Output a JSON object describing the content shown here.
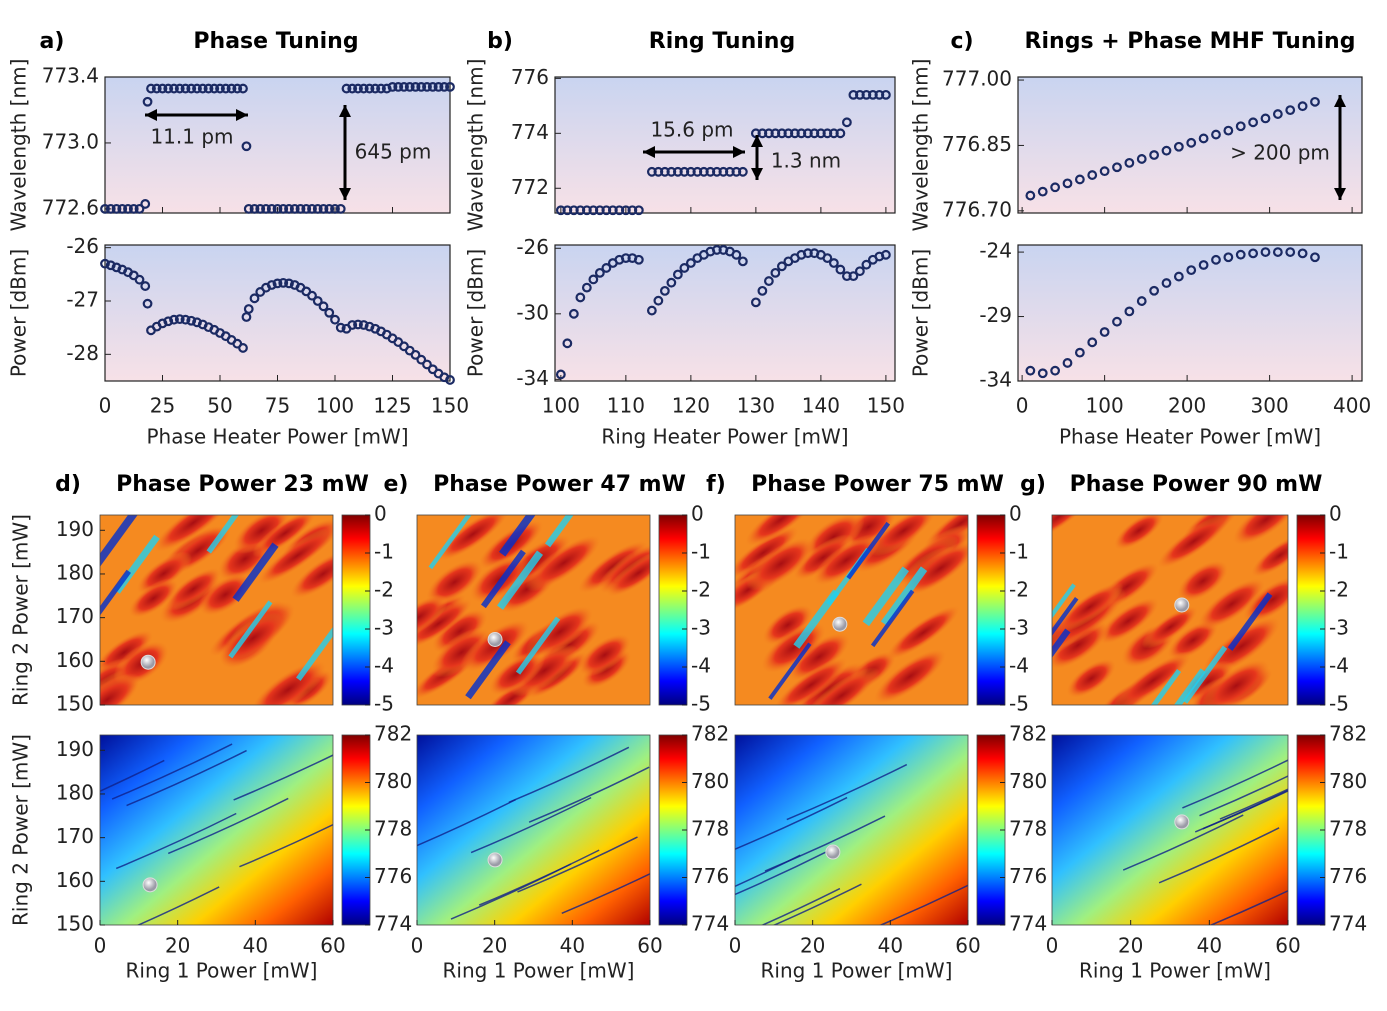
{
  "chart_data": [
    {
      "type": "scatter",
      "label": "a)",
      "title": "Phase Tuning",
      "xlabel": "Phase Heater Power [mW]",
      "xlim": [
        0,
        150
      ],
      "xticks": [
        0,
        25,
        50,
        75,
        100,
        125,
        150
      ],
      "x": [
        0,
        2.5,
        5,
        7.5,
        10,
        12.5,
        15,
        17.5,
        18.5,
        20,
        22.5,
        25,
        27.5,
        30,
        32.5,
        35,
        37.5,
        40,
        42.5,
        45,
        47.5,
        50,
        52.5,
        55,
        57.5,
        60,
        61.5,
        62.5,
        65,
        67.5,
        70,
        72.5,
        75,
        77.5,
        80,
        82.5,
        85,
        87.5,
        90,
        92.5,
        95,
        97.5,
        100,
        102.5,
        105,
        107.5,
        110,
        112.5,
        115,
        117.5,
        120,
        122.5,
        125,
        127.5,
        130,
        132.5,
        135,
        137.5,
        140,
        142.5,
        145,
        147.5,
        150
      ],
      "panels": [
        {
          "ylabel": "Wavelength [nm]",
          "ylim": [
            772.575,
            773.4
          ],
          "yticks": [
            772.6,
            {
              "value": 773,
              "label": "773.0"
            },
            773.4
          ],
          "color": "#1b2a63",
          "annotations": [
            "11.1 pm",
            "645 pm"
          ],
          "values": [
            772.6,
            772.6,
            772.6,
            772.6,
            772.6,
            772.6,
            772.6,
            772.63,
            773.25,
            773.33,
            773.33,
            773.33,
            773.33,
            773.33,
            773.33,
            773.33,
            773.33,
            773.33,
            773.33,
            773.33,
            773.33,
            773.33,
            773.33,
            773.33,
            773.33,
            773.33,
            772.98,
            772.6,
            772.6,
            772.6,
            772.6,
            772.6,
            772.6,
            772.6,
            772.6,
            772.6,
            772.6,
            772.6,
            772.6,
            772.6,
            772.6,
            772.6,
            772.6,
            772.6,
            773.33,
            773.33,
            773.33,
            773.33,
            773.33,
            773.33,
            773.33,
            773.33,
            773.34,
            773.34,
            773.34,
            773.34,
            773.34,
            773.34,
            773.34,
            773.34,
            773.34,
            773.34,
            773.34
          ]
        },
        {
          "ylabel": "Power [dBm]",
          "ylim": [
            -28.5,
            -25.95
          ],
          "yticks": [
            -26,
            -27,
            -28
          ],
          "color": "#1b2a63",
          "values": [
            -26.3,
            -26.33,
            -26.37,
            -26.41,
            -26.46,
            -26.52,
            -26.6,
            -26.72,
            -27.05,
            -27.55,
            -27.48,
            -27.42,
            -27.38,
            -27.35,
            -27.34,
            -27.35,
            -27.37,
            -27.4,
            -27.44,
            -27.49,
            -27.54,
            -27.6,
            -27.66,
            -27.73,
            -27.8,
            -27.88,
            -27.3,
            -27.15,
            -26.95,
            -26.83,
            -26.75,
            -26.7,
            -26.67,
            -26.66,
            -26.67,
            -26.7,
            -26.75,
            -26.82,
            -26.9,
            -27.0,
            -27.1,
            -27.22,
            -27.35,
            -27.5,
            -27.52,
            -27.45,
            -27.44,
            -27.45,
            -27.48,
            -27.52,
            -27.57,
            -27.63,
            -27.7,
            -27.77,
            -27.85,
            -27.93,
            -28.01,
            -28.1,
            -28.19,
            -28.28,
            -28.36,
            -28.43,
            -28.48
          ]
        }
      ]
    },
    {
      "type": "scatter",
      "label": "b)",
      "title": "Ring Tuning",
      "xlabel": "Ring Heater Power [mW]",
      "xlim": [
        99.1,
        151.4
      ],
      "xticks": [
        100,
        110,
        120,
        130,
        140,
        150
      ],
      "x": [
        100,
        101,
        102,
        103,
        104,
        105,
        106,
        107,
        108,
        109,
        110,
        111,
        112,
        114,
        115,
        116,
        117,
        118,
        119,
        120,
        121,
        122,
        123,
        124,
        125,
        126,
        127,
        128,
        130,
        131,
        132,
        133,
        134,
        135,
        136,
        137,
        138,
        139,
        140,
        141,
        142,
        143,
        144,
        145,
        146,
        147,
        148,
        149,
        150
      ],
      "panels": [
        {
          "ylabel": "Wavelength [nm]",
          "ylim": [
            771.1,
            776.05
          ],
          "yticks": [
            772,
            774,
            776
          ],
          "color": "#1b2a63",
          "annotations": [
            "15.6 pm",
            "1.3 nm"
          ],
          "values": [
            771.2,
            771.2,
            771.2,
            771.2,
            771.2,
            771.2,
            771.2,
            771.2,
            771.2,
            771.2,
            771.2,
            771.2,
            771.2,
            772.6,
            772.6,
            772.6,
            772.6,
            772.6,
            772.6,
            772.6,
            772.6,
            772.6,
            772.6,
            772.6,
            772.6,
            772.6,
            772.6,
            772.6,
            774.0,
            774.0,
            774.0,
            774.0,
            774.0,
            774.0,
            774.0,
            774.0,
            774.0,
            774.0,
            774.0,
            774.0,
            774.0,
            774.0,
            774.4,
            775.4,
            775.4,
            775.4,
            775.4,
            775.4,
            775.4
          ]
        },
        {
          "ylabel": "Power [dBm]",
          "ylim": [
            -34.1,
            -25.8
          ],
          "yticks": [
            -26,
            -30,
            -34
          ],
          "color": "#1b2a63",
          "values": [
            -33.7,
            -31.8,
            -30,
            -29,
            -28.4,
            -27.9,
            -27.5,
            -27.2,
            -26.9,
            -26.7,
            -26.6,
            -26.6,
            -26.7,
            -29.8,
            -29.2,
            -28.6,
            -28.1,
            -27.6,
            -27.2,
            -26.9,
            -26.6,
            -26.4,
            -26.2,
            -26.1,
            -26.1,
            -26.2,
            -26.4,
            -26.8,
            -29.3,
            -28.6,
            -28,
            -27.5,
            -27.1,
            -26.8,
            -26.6,
            -26.4,
            -26.3,
            -26.3,
            -26.4,
            -26.6,
            -26.9,
            -27.3,
            -27.7,
            -27.7,
            -27.4,
            -27.0,
            -26.7,
            -26.5,
            -26.4
          ]
        }
      ]
    },
    {
      "type": "scatter",
      "label": "c)",
      "title": "Rings + Phase MHF Tuning",
      "xlabel": "Phase Heater Power [mW]",
      "xlim": [
        -5,
        412
      ],
      "xticks": [
        0,
        100,
        200,
        300,
        400
      ],
      "x": [
        10,
        25,
        40,
        55,
        70,
        85,
        100,
        115,
        130,
        145,
        160,
        175,
        190,
        205,
        220,
        235,
        250,
        265,
        280,
        295,
        310,
        325,
        340,
        355
      ],
      "panels": [
        {
          "ylabel": "Wavelength [nm]",
          "ylim": [
            776.695,
            777.007
          ],
          "yticks": [
            {
              "value": 776.7,
              "label": "776.70"
            },
            776.85,
            {
              "value": 777,
              "label": "777.00"
            }
          ],
          "color": "#1b2a63",
          "annotations": [
            "> 200 pm"
          ],
          "values": [
            776.735,
            776.744,
            776.754,
            776.763,
            776.772,
            776.782,
            776.791,
            776.8,
            776.81,
            776.819,
            776.828,
            776.838,
            776.847,
            776.856,
            776.866,
            776.875,
            776.884,
            776.894,
            776.903,
            776.912,
            776.922,
            776.931,
            776.94,
            776.95
          ]
        },
        {
          "ylabel": "Power [dBm]",
          "ylim": [
            -34,
            -23.45
          ],
          "yticks": [
            -24,
            -29,
            -34
          ],
          "color": "#1b2a63",
          "values": [
            -33.2,
            -33.4,
            -33.2,
            -32.6,
            -31.8,
            -31.0,
            -30.2,
            -29.4,
            -28.6,
            -27.8,
            -27.0,
            -26.4,
            -25.9,
            -25.4,
            -25.0,
            -24.6,
            -24.4,
            -24.2,
            -24.1,
            -24.0,
            -24.0,
            -24.0,
            -24.1,
            -24.4
          ]
        }
      ]
    },
    {
      "type": "heatmap",
      "label": "d)",
      "title": "Phase Power 23 mW",
      "xlabel": "Ring 1 Power [mW]",
      "ylabel": "Ring 2  Power [mW]",
      "xlim": [
        0,
        60
      ],
      "xticks": [
        0,
        20,
        40,
        60
      ],
      "ylim": [
        150,
        193.5
      ],
      "yticks": [
        150,
        160,
        170,
        180,
        190
      ],
      "maps": [
        {
          "clim": [
            -5,
            0
          ],
          "cticks": [
            0,
            -1,
            -2,
            -3,
            -4,
            -5
          ],
          "marker": {
            "x": 12.4,
            "y": 159.8
          }
        },
        {
          "clim": [
            774,
            782
          ],
          "cticks": [
            774,
            776,
            778,
            780,
            782
          ],
          "marker": {
            "x": 12.9,
            "y": 159.2
          }
        }
      ]
    },
    {
      "type": "heatmap",
      "label": "e)",
      "title": "Phase Power 47 mW",
      "xlabel": "Ring 1 Power [mW]",
      "xlim": [
        0,
        60
      ],
      "xticks": [
        0,
        20,
        40,
        60
      ],
      "ylim": [
        150,
        193.5
      ],
      "maps": [
        {
          "clim": [
            -5,
            0
          ],
          "cticks": [
            0,
            -1,
            -2,
            -3,
            -4,
            -5
          ],
          "marker": {
            "x": 20.1,
            "y": 165
          }
        },
        {
          "clim": [
            774,
            782
          ],
          "cticks": [
            774,
            776,
            778,
            780,
            782
          ],
          "marker": {
            "x": 20.1,
            "y": 164.9
          }
        }
      ]
    },
    {
      "type": "heatmap",
      "label": "f)",
      "title": "Phase Power 75 mW",
      "xlabel": "Ring 1 Power [mW]",
      "xlim": [
        0,
        60
      ],
      "xticks": [
        0,
        20,
        40,
        60
      ],
      "ylim": [
        150,
        193.5
      ],
      "maps": [
        {
          "clim": [
            -5,
            0
          ],
          "cticks": [
            0,
            -1,
            -2,
            -3,
            -4,
            -5
          ],
          "marker": {
            "x": 27,
            "y": 168.5
          }
        },
        {
          "clim": [
            774,
            782
          ],
          "cticks": [
            774,
            776,
            778,
            780,
            782
          ],
          "marker": {
            "x": 25.2,
            "y": 166.7
          }
        }
      ]
    },
    {
      "type": "heatmap",
      "label": "g)",
      "title": "Phase Power 90 mW",
      "xlabel": "Ring 1 Power [mW]",
      "xlim": [
        0,
        60
      ],
      "xticks": [
        0,
        20,
        40,
        60
      ],
      "ylim": [
        150,
        193.5
      ],
      "maps": [
        {
          "clim": [
            -5,
            0
          ],
          "cticks": [
            0,
            -1,
            -2,
            -3,
            -4,
            -5
          ],
          "marker": {
            "x": 33,
            "y": 172.9
          }
        },
        {
          "clim": [
            774,
            782
          ],
          "cticks": [
            774,
            776,
            778,
            780,
            782
          ],
          "marker": {
            "x": 33,
            "y": 173.6
          }
        }
      ]
    }
  ]
}
